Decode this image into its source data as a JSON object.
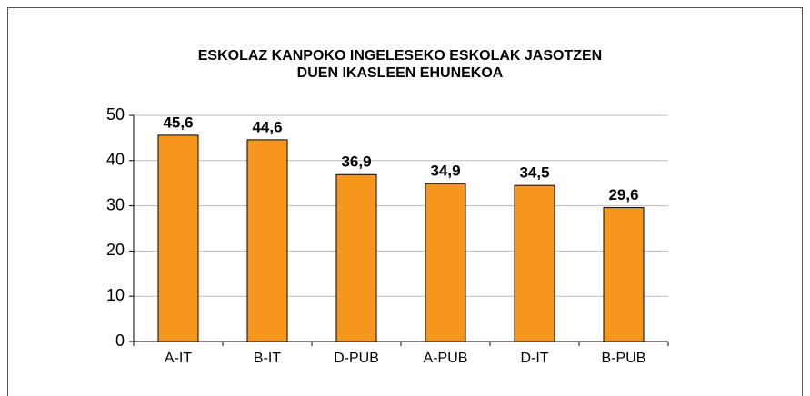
{
  "chart_data": {
    "type": "bar",
    "title": [
      "ESKOLAZ KANPOKO INGELESEKO ESKOLAK JASOTZEN",
      "DUEN IKASLEEN EHUNEKOA"
    ],
    "categories": [
      "A-IT",
      "B-IT",
      "D-PUB",
      "A-PUB",
      "D-IT",
      "B-PUB"
    ],
    "values": [
      45.6,
      44.6,
      36.9,
      34.9,
      34.5,
      29.6
    ],
    "value_labels": [
      "45,6",
      "44,6",
      "36,9",
      "34,9",
      "34,5",
      "29,6"
    ],
    "color": "#f7961d",
    "ylim": [
      0,
      50
    ],
    "yticks": [
      0,
      10,
      20,
      30,
      40,
      50
    ],
    "grid": true
  }
}
